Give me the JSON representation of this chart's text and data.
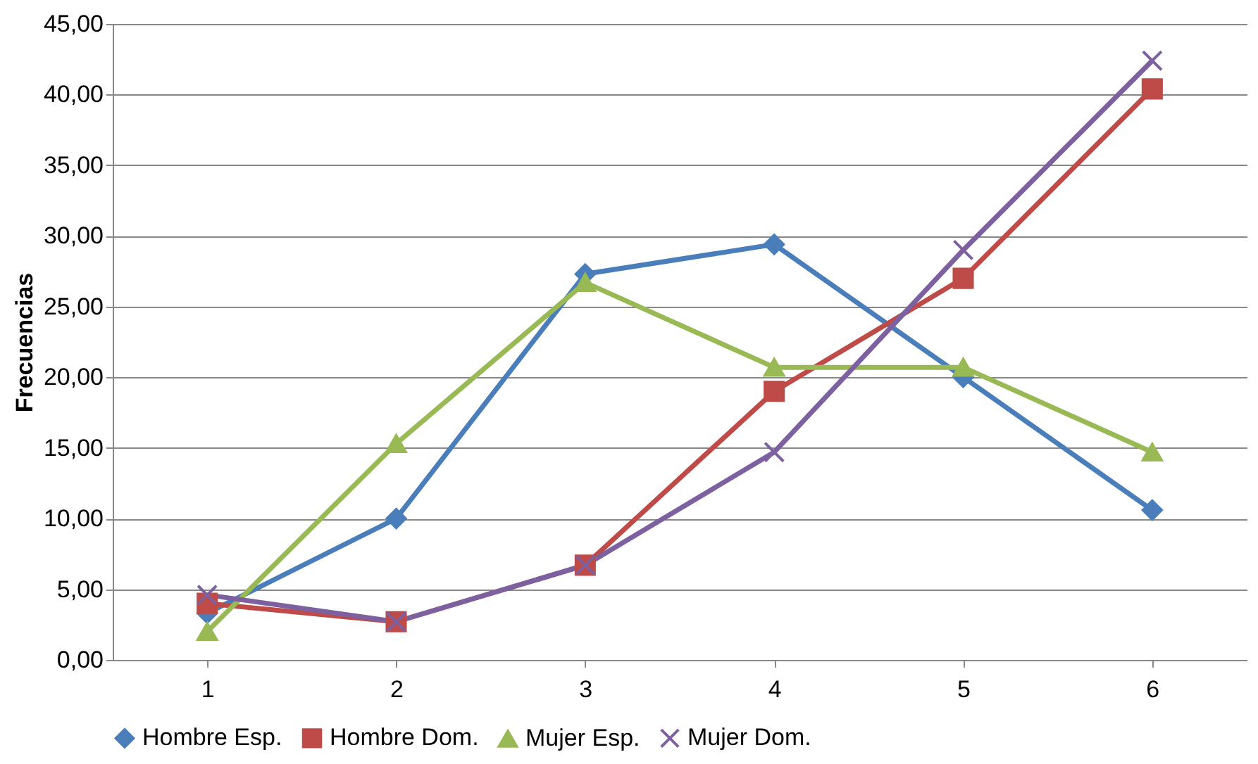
{
  "chart_data": {
    "type": "line",
    "ylabel": "Frecuencias",
    "categories": [
      "1",
      "2",
      "3",
      "4",
      "5",
      "6"
    ],
    "series": [
      {
        "name": "Hombre Esp.",
        "color": "#4a7ebb",
        "marker": "diamond",
        "values": [
          3.3,
          10.0,
          27.3,
          29.4,
          20.0,
          10.6
        ]
      },
      {
        "name": "Hombre Dom.",
        "color": "#be4b48",
        "marker": "square",
        "values": [
          4.0,
          2.7,
          6.7,
          19.0,
          27.0,
          40.4
        ]
      },
      {
        "name": "Mujer Esp.",
        "color": "#98b954",
        "marker": "triangle",
        "values": [
          2.0,
          15.3,
          26.7,
          20.7,
          20.7,
          14.7
        ]
      },
      {
        "name": "Mujer Dom.",
        "color": "#7d60a0",
        "marker": "cross",
        "values": [
          4.6,
          2.7,
          6.7,
          14.7,
          29.0,
          42.4
        ]
      }
    ],
    "ylim": [
      0,
      45
    ],
    "yticks": [
      {
        "value": 0,
        "label": "0,00"
      },
      {
        "value": 5,
        "label": "5,00"
      },
      {
        "value": 10,
        "label": "10,00"
      },
      {
        "value": 15,
        "label": "15,00"
      },
      {
        "value": 20,
        "label": "20,00"
      },
      {
        "value": 25,
        "label": "25,00"
      },
      {
        "value": 30,
        "label": "30,00"
      },
      {
        "value": 35,
        "label": "35,00"
      },
      {
        "value": 40,
        "label": "40,00"
      },
      {
        "value": 45,
        "label": "45,00"
      }
    ],
    "grid": "y",
    "legend": "bottom",
    "line_style": "solid"
  }
}
